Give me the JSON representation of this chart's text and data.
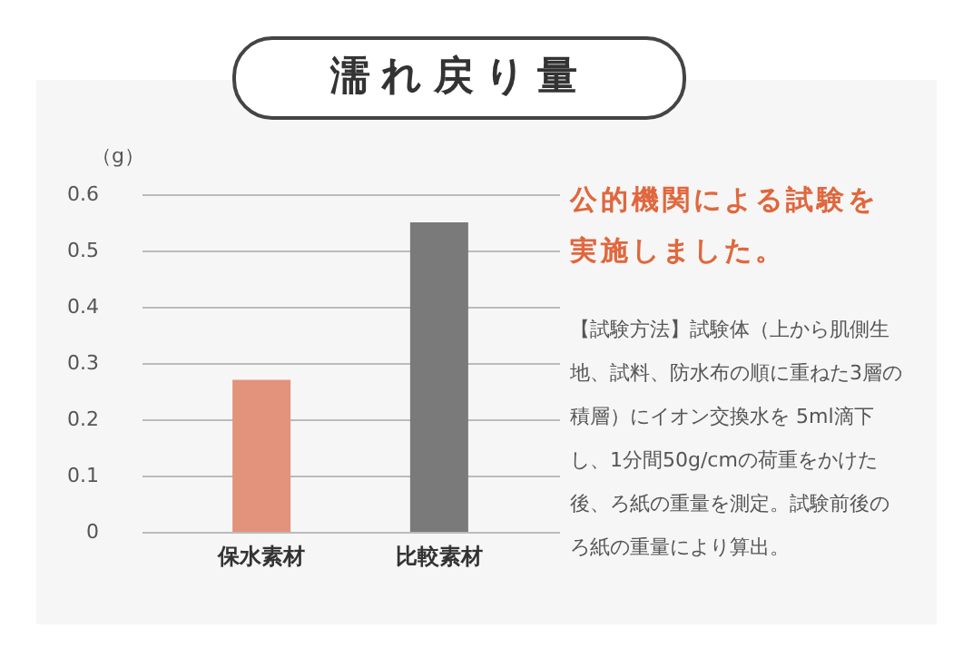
{
  "chart_data": {
    "type": "bar",
    "title": "濡れ戻り量",
    "ylabel": "（g）",
    "categories": [
      "保水素材",
      "比較素材"
    ],
    "values": [
      0.27,
      0.55
    ],
    "colors": [
      "#e3927c",
      "#7a7a7a"
    ],
    "ylim": [
      0,
      0.6
    ],
    "yticks": [
      0,
      0.1,
      0.2,
      0.3,
      0.4,
      0.5,
      0.6
    ],
    "grid": "y",
    "annotations": [
      "公的機関による試験を実施しました。",
      "【試験方法】試験体（上から肌側生地、試料、防水布の順に重ねた3層の積層）にイオン交換水を 5ml滴下し、1分間50g/cmの荷重をかけた後、ろ紙の重量を測定。試験前後のろ紙の重量により算出。"
    ]
  }
}
